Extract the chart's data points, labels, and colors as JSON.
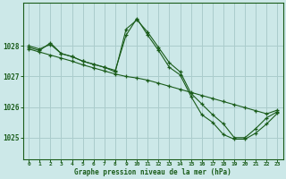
{
  "bg_color": "#cce8e8",
  "plot_bg_color": "#cce8e8",
  "grid_color": "#aacccc",
  "line_color": "#1a5c1a",
  "xlabel": "Graphe pression niveau de la mer (hPa)",
  "xlabel_color": "#1a5c1a",
  "ylabel_ticks": [
    1025,
    1026,
    1027,
    1028
  ],
  "xtick_labels": [
    "0",
    "1",
    "2",
    "3",
    "4",
    "5",
    "6",
    "7",
    "8",
    "9",
    "10",
    "11",
    "12",
    "13",
    "14",
    "15",
    "16",
    "17",
    "18",
    "19",
    "20",
    "21",
    "22",
    "23"
  ],
  "ylim": [
    1024.3,
    1029.4
  ],
  "xlim": [
    -0.5,
    23.5
  ],
  "series": [
    {
      "x": [
        0,
        1,
        2,
        3,
        4,
        5,
        6,
        7,
        8,
        9,
        10,
        11,
        12,
        13,
        14,
        15,
        16,
        17,
        18,
        19,
        20,
        21,
        22,
        23
      ],
      "y": [
        1027.95,
        1027.85,
        1028.1,
        1027.75,
        1027.65,
        1027.5,
        1027.4,
        1027.3,
        1027.15,
        1028.55,
        1028.85,
        1028.45,
        1027.95,
        1027.45,
        1027.15,
        1026.45,
        1026.1,
        1025.75,
        1025.45,
        1025.0,
        1025.0,
        1025.3,
        1025.65,
        1025.85
      ]
    },
    {
      "x": [
        0,
        1,
        2,
        3,
        4,
        5,
        6,
        7,
        8,
        9,
        10,
        11,
        12,
        13,
        14,
        15,
        16,
        17,
        18,
        19,
        20,
        21,
        22,
        23
      ],
      "y": [
        1027.9,
        1027.8,
        1027.7,
        1027.6,
        1027.5,
        1027.38,
        1027.28,
        1027.18,
        1027.08,
        1027.0,
        1026.95,
        1026.88,
        1026.78,
        1026.68,
        1026.58,
        1026.48,
        1026.38,
        1026.28,
        1026.18,
        1026.08,
        1025.98,
        1025.88,
        1025.78,
        1025.9
      ]
    },
    {
      "x": [
        0,
        1,
        2,
        3,
        4,
        5,
        6,
        7,
        8,
        9,
        10,
        11,
        12,
        13,
        14,
        15,
        16,
        17,
        18,
        19,
        20,
        21,
        22,
        23
      ],
      "y": [
        1028.0,
        1027.9,
        1028.05,
        1027.75,
        1027.65,
        1027.5,
        1027.4,
        1027.3,
        1027.2,
        1028.35,
        1028.9,
        1028.35,
        1027.85,
        1027.3,
        1027.05,
        1026.35,
        1025.75,
        1025.5,
        1025.1,
        1024.95,
        1024.95,
        1025.15,
        1025.45,
        1025.8
      ]
    }
  ]
}
